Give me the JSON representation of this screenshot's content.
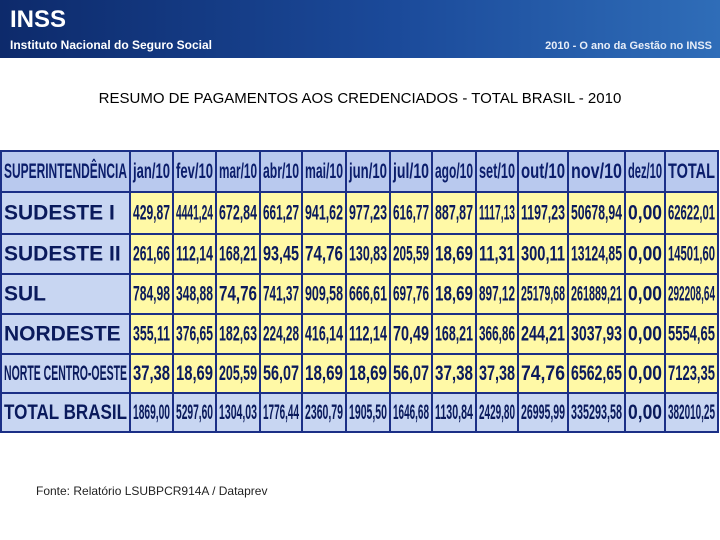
{
  "header": {
    "logo": "INSS",
    "institution": "Instituto Nacional do Seguro Social",
    "slogan": "2010 - O ano da Gestão no INSS"
  },
  "title": "RESUMO DE PAGAMENTOS AOS CREDENCIADOS - TOTAL BRASIL -  2010",
  "table": {
    "columns": [
      "SUPERINTENDÊNCIA",
      "jan/10",
      "fev/10",
      "mar/10",
      "abr/10",
      "mai/10",
      "jun/10",
      "jul/10",
      "ago/10",
      "set/10",
      "out/10",
      "nov/10",
      "dez/10",
      "TOTAL"
    ],
    "rows": [
      [
        "SUDESTE I",
        "429,87",
        "4441,24",
        "672,84",
        "661,27",
        "941,62",
        "977,23",
        "616,77",
        "887,87",
        "1117,13",
        "1197,23",
        "50678,94",
        "0,00",
        "62622,01"
      ],
      [
        "SUDESTE II",
        "261,66",
        "112,14",
        "168,21",
        "93,45",
        "74,76",
        "130,83",
        "205,59",
        "18,69",
        "11,31",
        "300,11",
        "13124,85",
        "0,00",
        "14501,60"
      ],
      [
        "SUL",
        "784,98",
        "348,88",
        "74,76",
        "741,37",
        "909,58",
        "666,61",
        "697,76",
        "18,69",
        "897,12",
        "25179,68",
        "261889,21",
        "0,00",
        "292208,64"
      ],
      [
        "NORDESTE",
        "355,11",
        "376,65",
        "182,63",
        "224,28",
        "416,14",
        "112,14",
        "70,49",
        "168,21",
        "366,86",
        "244,21",
        "3037,93",
        "0,00",
        "5554,65"
      ],
      [
        "NORTE CENTRO-OESTE",
        "37,38",
        "18,69",
        "205,59",
        "56,07",
        "18,69",
        "18,69",
        "56,07",
        "37,38",
        "37,38",
        "74,76",
        "6562,65",
        "0,00",
        "7123,35"
      ],
      [
        "TOTAL BRASIL",
        "1869,00",
        "5297,60",
        "1304,03",
        "1776,44",
        "2360,79",
        "1905,50",
        "1646,68",
        "1130,84",
        "2429,80",
        "26995,99",
        "335293,58",
        "0,00",
        "382010,25"
      ]
    ]
  },
  "source": "Fonte: Relatório  LSUBPCR914A / Dataprev"
}
